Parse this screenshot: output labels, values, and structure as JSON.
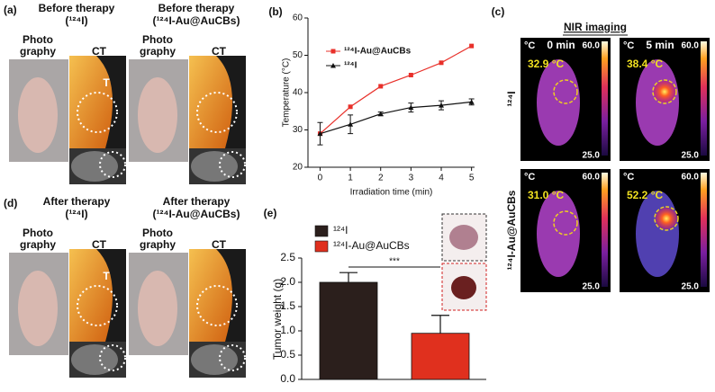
{
  "panel_a": {
    "label": "(a)",
    "groups": [
      {
        "title": "Before therapy",
        "subtitle": "(¹²⁴I)",
        "photo_label": [
          "Photo",
          "graphy"
        ],
        "ct_label": "CT",
        "tumor_label": "T"
      },
      {
        "title": "Before therapy",
        "subtitle": "(¹²⁴I-Au@AuCBs)",
        "photo_label": [
          "Photo",
          "graphy"
        ],
        "ct_label": "CT"
      }
    ]
  },
  "panel_d": {
    "label": "(d)",
    "groups": [
      {
        "title": "After therapy",
        "subtitle": "(¹²⁴I)",
        "photo_label": [
          "Photo",
          "graphy"
        ],
        "ct_label": "CT",
        "tumor_label": "T"
      },
      {
        "title": "After therapy",
        "subtitle": "(¹²⁴I-Au@AuCBs)",
        "photo_label": [
          "Photo",
          "graphy"
        ],
        "ct_label": "CT"
      }
    ]
  },
  "panel_c": {
    "label": "(c)",
    "title": "NIR imaging",
    "rows": [
      {
        "label": "¹²⁴I",
        "images": [
          {
            "unit": "°C",
            "time": "0 min",
            "temperature": "32.9 °C",
            "scale_max": "60.0",
            "scale_min": "25.0"
          },
          {
            "unit": "°C",
            "time": "5 min",
            "temperature": "38.4 °C",
            "scale_max": "60.0",
            "scale_min": "25.0"
          }
        ]
      },
      {
        "label": "¹²⁴I-Au@AuCBs",
        "images": [
          {
            "unit": "°C",
            "temperature": "31.0 °C",
            "scale_max": "60.0",
            "scale_min": "25.0"
          },
          {
            "unit": "°C",
            "temperature": "52.2 °C",
            "scale_max": "60.0",
            "scale_min": "25.0"
          }
        ]
      }
    ]
  },
  "chart_data": [
    {
      "type": "line",
      "panel_label": "(b)",
      "x": [
        0,
        1,
        2,
        3,
        4,
        5
      ],
      "xlim": [
        -0.4,
        5.1
      ],
      "xticks": [
        0,
        1,
        2,
        3,
        4,
        5
      ],
      "ylim": [
        20,
        60
      ],
      "yticks": [
        20,
        30,
        40,
        50,
        60
      ],
      "xlabel": "Irradiation time (min)",
      "ylabel": "Temperature (°C)",
      "series": [
        {
          "name": "¹²⁴I-Au@AuCBs",
          "color": "#e8302a",
          "marker": "square",
          "values": [
            29,
            36.2,
            41.7,
            44.7,
            48,
            52.5
          ]
        },
        {
          "name": "¹²⁴I",
          "color": "#111111",
          "marker": "triangle",
          "values": [
            29,
            31.5,
            34.3,
            36,
            36.6,
            37.5
          ],
          "errors": [
            3,
            2.5,
            0.5,
            1.2,
            1.2,
            0.8
          ]
        }
      ]
    },
    {
      "type": "bar",
      "panel_label": "(e)",
      "ylim": [
        0,
        2.5
      ],
      "yticks": [
        {
          "value": 0,
          "label": "0.0"
        },
        0.5,
        {
          "value": 1,
          "label": "1.0"
        },
        1.5,
        {
          "value": 2,
          "label": "2.0"
        },
        2.5
      ],
      "ylabel": "Tumor weight (g)",
      "annotation": "***",
      "series": [
        {
          "name": "¹²⁴I",
          "color": "#2b1f1c",
          "values": [
            2.0
          ],
          "errors": [
            0.2
          ]
        },
        {
          "name": "¹²⁴I-Au@AuCBs",
          "color": "#e0301e",
          "values": [
            0.95
          ],
          "errors": [
            0.37
          ]
        }
      ]
    }
  ]
}
